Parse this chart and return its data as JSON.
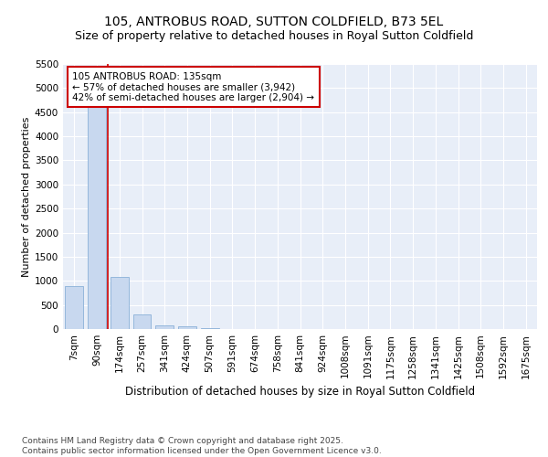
{
  "title": "105, ANTROBUS ROAD, SUTTON COLDFIELD, B73 5EL",
  "subtitle": "Size of property relative to detached houses in Royal Sutton Coldfield",
  "xlabel": "Distribution of detached houses by size in Royal Sutton Coldfield",
  "ylabel": "Number of detached properties",
  "bar_values": [
    900,
    4600,
    1080,
    300,
    80,
    50,
    20,
    0,
    0,
    0,
    0,
    0,
    0,
    0,
    0,
    0,
    0,
    0,
    0,
    0,
    0
  ],
  "categories": [
    "7sqm",
    "90sqm",
    "174sqm",
    "257sqm",
    "341sqm",
    "424sqm",
    "507sqm",
    "591sqm",
    "674sqm",
    "758sqm",
    "841sqm",
    "924sqm",
    "1008sqm",
    "1091sqm",
    "1175sqm",
    "1258sqm",
    "1341sqm",
    "1425sqm",
    "1508sqm",
    "1592sqm",
    "1675sqm"
  ],
  "bar_color": "#c8d8ef",
  "bar_edge_color": "#8ab0d8",
  "vline_color": "#cc0000",
  "vline_x": 1.5,
  "annotation_text": "105 ANTROBUS ROAD: 135sqm\n← 57% of detached houses are smaller (3,942)\n42% of semi-detached houses are larger (2,904) →",
  "annotation_box_facecolor": "#ffffff",
  "annotation_box_edgecolor": "#cc0000",
  "ylim": [
    0,
    5500
  ],
  "yticks": [
    0,
    500,
    1000,
    1500,
    2000,
    2500,
    3000,
    3500,
    4000,
    4500,
    5000,
    5500
  ],
  "plot_bg_color": "#e8eef8",
  "footer_text": "Contains HM Land Registry data © Crown copyright and database right 2025.\nContains public sector information licensed under the Open Government Licence v3.0.",
  "title_fontsize": 10,
  "subtitle_fontsize": 9,
  "xlabel_fontsize": 8.5,
  "ylabel_fontsize": 8,
  "tick_fontsize": 7.5,
  "footer_fontsize": 6.5,
  "annotation_fontsize": 7.5
}
